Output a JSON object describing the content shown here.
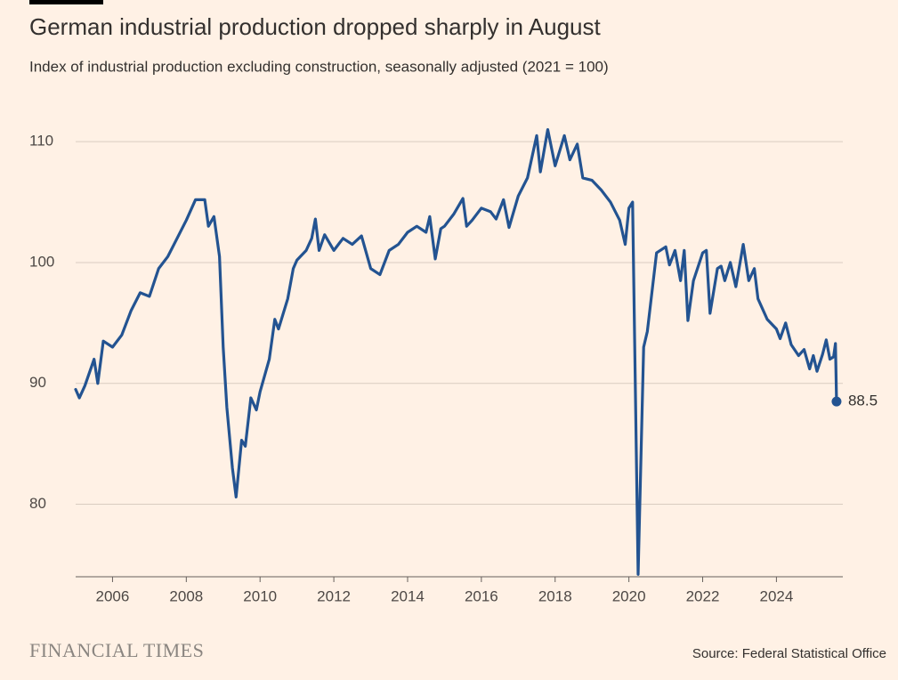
{
  "chart_data": {
    "type": "line",
    "title": "German industrial production dropped sharply in August",
    "subtitle": "Index of industrial production excluding construction, seasonally adjusted (2021 = 100)",
    "source": "Source: Federal Statistical Office",
    "logo": "FINANCIAL TIMES",
    "x": [
      2005.0,
      2005.1,
      2005.25,
      2005.5,
      2005.6,
      2005.75,
      2006.0,
      2006.25,
      2006.5,
      2006.75,
      2007.0,
      2007.25,
      2007.5,
      2007.75,
      2008.0,
      2008.25,
      2008.5,
      2008.6,
      2008.75,
      2008.9,
      2009.0,
      2009.1,
      2009.25,
      2009.35,
      2009.5,
      2009.6,
      2009.75,
      2009.9,
      2010.0,
      2010.25,
      2010.4,
      2010.5,
      2010.75,
      2010.9,
      2011.0,
      2011.25,
      2011.4,
      2011.5,
      2011.6,
      2011.75,
      2012.0,
      2012.25,
      2012.5,
      2012.75,
      2013.0,
      2013.25,
      2013.5,
      2013.75,
      2014.0,
      2014.25,
      2014.5,
      2014.6,
      2014.75,
      2014.9,
      2015.0,
      2015.25,
      2015.5,
      2015.6,
      2015.75,
      2016.0,
      2016.25,
      2016.4,
      2016.6,
      2016.75,
      2017.0,
      2017.25,
      2017.5,
      2017.6,
      2017.8,
      2018.0,
      2018.25,
      2018.4,
      2018.6,
      2018.75,
      2019.0,
      2019.25,
      2019.5,
      2019.75,
      2019.9,
      2020.0,
      2020.1,
      2020.25,
      2020.4,
      2020.5,
      2020.75,
      2021.0,
      2021.1,
      2021.25,
      2021.4,
      2021.5,
      2021.6,
      2021.75,
      2022.0,
      2022.1,
      2022.2,
      2022.4,
      2022.5,
      2022.6,
      2022.75,
      2022.9,
      2023.1,
      2023.25,
      2023.4,
      2023.5,
      2023.75,
      2024.0,
      2024.1,
      2024.25,
      2024.4,
      2024.6,
      2024.75,
      2024.9,
      2025.0,
      2025.1,
      2025.25,
      2025.35,
      2025.45,
      2025.55,
      2025.6,
      2025.63
    ],
    "series": [
      {
        "color": "#235391",
        "values": [
          89.5,
          88.8,
          89.8,
          92,
          90,
          93.5,
          93,
          94,
          96,
          97.5,
          97.2,
          99.5,
          100.5,
          102,
          103.5,
          105.2,
          105.2,
          103,
          103.8,
          100.5,
          93,
          88,
          83,
          80.6,
          85.3,
          84.8,
          88.8,
          87.8,
          89.3,
          92,
          95.3,
          94.5,
          97,
          99.5,
          100.2,
          101,
          102,
          103.6,
          101,
          102.3,
          101,
          102,
          101.5,
          102.2,
          99.5,
          99,
          101,
          101.5,
          102.5,
          103,
          102.5,
          103.8,
          100.3,
          102.8,
          103,
          104,
          105.3,
          103,
          103.5,
          104.5,
          104.2,
          103.6,
          105.2,
          102.9,
          105.5,
          107,
          110.5,
          107.5,
          111,
          108,
          110.5,
          108.5,
          109.8,
          107,
          106.8,
          106,
          105,
          103.5,
          101.5,
          104.5,
          105,
          74.2,
          93,
          94.3,
          100.8,
          101.3,
          99.8,
          101,
          98.5,
          101,
          95.2,
          98.5,
          100.8,
          101,
          95.8,
          99.5,
          99.7,
          98.5,
          100,
          98,
          101.5,
          98.5,
          99.5,
          97,
          95.3,
          94.5,
          93.7,
          95,
          93.2,
          92.3,
          92.8,
          91.2,
          92.3,
          91,
          92.4,
          93.6,
          92,
          92.2,
          93.3,
          88.5
        ]
      }
    ],
    "xlim": [
      2005,
      2025.8
    ],
    "xticks": [
      2006,
      2008,
      2010,
      2012,
      2014,
      2016,
      2018,
      2020,
      2022,
      2024
    ],
    "ylim": [
      74,
      112
    ],
    "yticks": [
      80,
      90,
      100,
      110
    ],
    "grid": true
  }
}
